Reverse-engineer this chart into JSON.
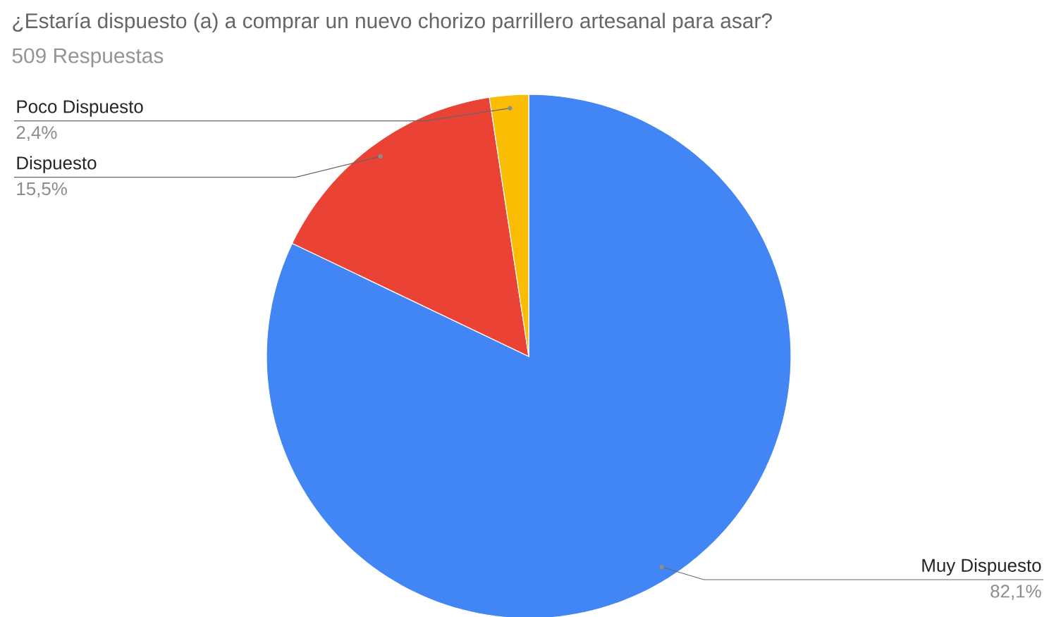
{
  "chart_data": {
    "type": "pie",
    "title": "¿Estaría dispuesto (a) a comprar un nuevo chorizo parrillero artesanal para asar?",
    "subtitle": "509 Respuestas",
    "categories": [
      "Muy Dispuesto",
      "Dispuesto",
      "Poco Dispuesto"
    ],
    "values": [
      82.1,
      15.5,
      2.4
    ],
    "colors": [
      "#4285f4",
      "#ea4335",
      "#fbbc04"
    ],
    "value_labels": [
      "82,1%",
      "15,5%",
      "2,4%"
    ]
  }
}
